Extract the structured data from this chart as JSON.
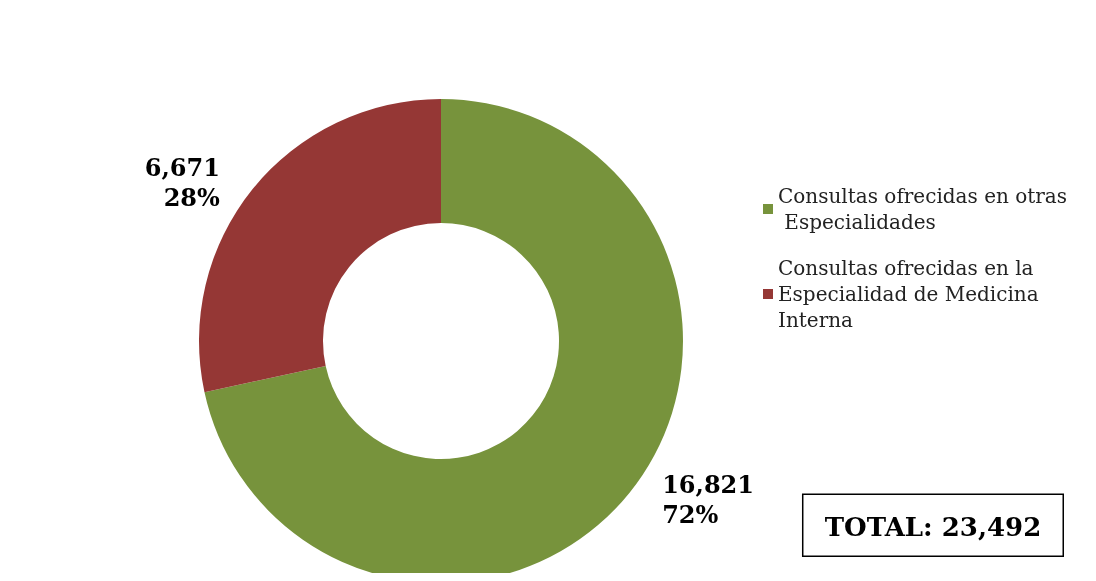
{
  "chart_data": {
    "type": "donut",
    "categories": [
      "Consultas ofrecidas en otras Especialidades",
      "Consultas ofrecidas en la Especialidad de Medicina Interna"
    ],
    "values": [
      16821,
      6671
    ],
    "colors": [
      "#77933c",
      "#953735"
    ],
    "value_labels": [
      "16,821\n72%",
      "6,671\n28%"
    ],
    "annotations": [
      "TOTAL: 23,492"
    ],
    "legend": "right"
  }
}
